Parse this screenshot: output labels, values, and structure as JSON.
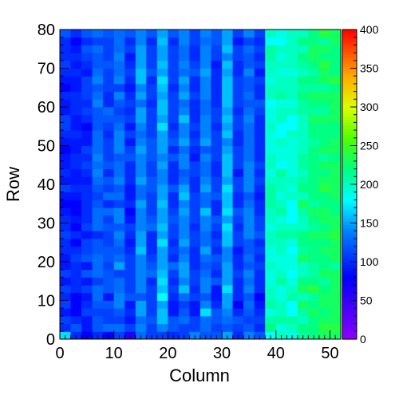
{
  "chart_data": {
    "type": "heatmap",
    "title": "",
    "xlabel": "Column",
    "ylabel": "Row",
    "xlim": [
      0,
      52
    ],
    "ylim": [
      0,
      80
    ],
    "x_ticks": [
      "0",
      "10",
      "20",
      "30",
      "40",
      "50"
    ],
    "y_ticks": [
      "0",
      "10",
      "20",
      "30",
      "40",
      "50",
      "60",
      "70",
      "80"
    ],
    "zlim": [
      0,
      400
    ],
    "z_ticks": [
      "0",
      "50",
      "100",
      "150",
      "200",
      "250",
      "300",
      "350",
      "400"
    ],
    "colormap": "rainbow (violet-blue-cyan-green-yellow-red)",
    "bin_size": 2,
    "n_cols": 26,
    "n_rows": 40,
    "values": [
      [
        170,
        100,
        80,
        100,
        80,
        110,
        60,
        130,
        110,
        110,
        100,
        110,
        140,
        120,
        120,
        150,
        100,
        140,
        120,
        180,
        200,
        190,
        210,
        220,
        230,
        230
      ],
      [
        100,
        120,
        90,
        120,
        130,
        130,
        110,
        140,
        110,
        140,
        120,
        110,
        110,
        130,
        110,
        120,
        110,
        120,
        100,
        220,
        190,
        200,
        220,
        220,
        240,
        240
      ],
      [
        110,
        100,
        90,
        120,
        110,
        110,
        90,
        130,
        120,
        160,
        120,
        130,
        110,
        130,
        120,
        130,
        120,
        110,
        110,
        210,
        210,
        210,
        200,
        220,
        230,
        230
      ],
      [
        90,
        80,
        110,
        110,
        110,
        120,
        100,
        150,
        110,
        160,
        90,
        120,
        90,
        170,
        120,
        140,
        100,
        120,
        100,
        190,
        200,
        180,
        210,
        230,
        220,
        230
      ],
      [
        110,
        80,
        100,
        120,
        120,
        140,
        90,
        150,
        110,
        150,
        90,
        110,
        90,
        140,
        100,
        150,
        80,
        130,
        90,
        210,
        200,
        180,
        230,
        220,
        230,
        230
      ],
      [
        100,
        80,
        90,
        130,
        90,
        140,
        120,
        120,
        110,
        180,
        100,
        130,
        110,
        120,
        90,
        150,
        100,
        120,
        80,
        200,
        190,
        210,
        200,
        210,
        230,
        230
      ],
      [
        110,
        100,
        110,
        130,
        120,
        130,
        110,
        140,
        110,
        160,
        110,
        160,
        100,
        140,
        90,
        170,
        100,
        140,
        100,
        200,
        190,
        200,
        230,
        240,
        220,
        230
      ],
      [
        90,
        100,
        90,
        110,
        120,
        130,
        110,
        140,
        100,
        170,
        100,
        140,
        110,
        140,
        120,
        150,
        100,
        130,
        100,
        190,
        210,
        190,
        220,
        220,
        210,
        230
      ],
      [
        110,
        100,
        120,
        130,
        120,
        110,
        110,
        140,
        130,
        160,
        110,
        150,
        110,
        130,
        100,
        150,
        110,
        140,
        100,
        190,
        200,
        180,
        200,
        210,
        230,
        230
      ],
      [
        90,
        100,
        90,
        130,
        110,
        150,
        110,
        140,
        120,
        150,
        130,
        150,
        100,
        120,
        110,
        150,
        100,
        120,
        110,
        200,
        190,
        190,
        200,
        210,
        220,
        210
      ],
      [
        90,
        110,
        120,
        130,
        120,
        130,
        110,
        140,
        110,
        150,
        100,
        140,
        100,
        130,
        120,
        140,
        100,
        130,
        100,
        190,
        190,
        190,
        230,
        220,
        220,
        230
      ],
      [
        100,
        100,
        110,
        120,
        120,
        120,
        100,
        160,
        100,
        150,
        110,
        130,
        100,
        150,
        100,
        140,
        90,
        120,
        110,
        190,
        200,
        180,
        210,
        220,
        230,
        230
      ],
      [
        100,
        80,
        110,
        120,
        110,
        130,
        90,
        150,
        100,
        170,
        100,
        150,
        110,
        130,
        110,
        160,
        110,
        120,
        100,
        200,
        200,
        190,
        220,
        220,
        220,
        230
      ],
      [
        110,
        100,
        90,
        100,
        110,
        140,
        100,
        150,
        100,
        150,
        110,
        140,
        110,
        130,
        100,
        160,
        110,
        140,
        120,
        200,
        210,
        210,
        220,
        230,
        230,
        240
      ],
      [
        100,
        80,
        110,
        130,
        120,
        120,
        110,
        140,
        130,
        160,
        110,
        140,
        100,
        140,
        110,
        170,
        100,
        140,
        110,
        190,
        200,
        200,
        200,
        210,
        220,
        230
      ],
      [
        100,
        90,
        100,
        130,
        110,
        140,
        90,
        140,
        120,
        150,
        120,
        140,
        110,
        140,
        120,
        150,
        110,
        140,
        110,
        200,
        190,
        180,
        200,
        220,
        230,
        230
      ],
      [
        90,
        80,
        100,
        130,
        130,
        140,
        80,
        140,
        110,
        150,
        110,
        150,
        110,
        160,
        100,
        170,
        120,
        140,
        100,
        200,
        210,
        180,
        210,
        230,
        230,
        220
      ],
      [
        80,
        80,
        100,
        120,
        100,
        110,
        100,
        150,
        110,
        160,
        100,
        140,
        110,
        130,
        100,
        160,
        100,
        130,
        100,
        210,
        200,
        180,
        230,
        210,
        220,
        220
      ],
      [
        90,
        90,
        100,
        110,
        130,
        130,
        90,
        130,
        110,
        150,
        100,
        160,
        110,
        130,
        120,
        160,
        100,
        120,
        90,
        210,
        190,
        200,
        200,
        220,
        220,
        230
      ],
      [
        110,
        100,
        100,
        120,
        110,
        120,
        90,
        130,
        120,
        150,
        120,
        150,
        100,
        150,
        110,
        170,
        110,
        140,
        100,
        210,
        200,
        190,
        220,
        220,
        240,
        230
      ],
      [
        90,
        90,
        90,
        130,
        120,
        140,
        100,
        150,
        120,
        140,
        100,
        130,
        100,
        140,
        110,
        150,
        110,
        140,
        110,
        200,
        200,
        200,
        210,
        220,
        230,
        230
      ],
      [
        100,
        90,
        100,
        140,
        100,
        130,
        100,
        140,
        110,
        140,
        100,
        120,
        110,
        130,
        100,
        160,
        90,
        140,
        100,
        190,
        210,
        190,
        200,
        220,
        220,
        230
      ],
      [
        90,
        100,
        110,
        130,
        120,
        130,
        100,
        140,
        110,
        150,
        100,
        140,
        110,
        130,
        100,
        160,
        110,
        140,
        110,
        200,
        180,
        190,
        210,
        220,
        230,
        230
      ],
      [
        90,
        100,
        100,
        140,
        110,
        120,
        120,
        140,
        120,
        140,
        120,
        140,
        90,
        140,
        110,
        160,
        110,
        130,
        100,
        200,
        190,
        190,
        210,
        220,
        210,
        220
      ],
      [
        80,
        90,
        110,
        130,
        110,
        140,
        110,
        150,
        120,
        150,
        100,
        130,
        100,
        120,
        110,
        150,
        110,
        130,
        100,
        190,
        190,
        190,
        200,
        220,
        230,
        230
      ],
      [
        90,
        90,
        90,
        130,
        110,
        140,
        90,
        140,
        120,
        150,
        120,
        150,
        110,
        150,
        110,
        140,
        100,
        130,
        100,
        190,
        200,
        190,
        200,
        210,
        220,
        230
      ],
      [
        100,
        100,
        90,
        130,
        100,
        140,
        110,
        130,
        110,
        150,
        110,
        140,
        100,
        140,
        110,
        160,
        100,
        130,
        100,
        190,
        180,
        200,
        200,
        220,
        220,
        220
      ],
      [
        110,
        90,
        80,
        120,
        110,
        130,
        90,
        140,
        110,
        170,
        100,
        140,
        110,
        140,
        100,
        150,
        110,
        130,
        100,
        200,
        180,
        180,
        200,
        220,
        220,
        220
      ],
      [
        110,
        90,
        100,
        120,
        120,
        120,
        110,
        150,
        110,
        150,
        110,
        160,
        100,
        140,
        110,
        160,
        110,
        140,
        100,
        190,
        200,
        180,
        200,
        230,
        230,
        230
      ],
      [
        90,
        100,
        110,
        120,
        130,
        110,
        100,
        150,
        110,
        160,
        110,
        140,
        100,
        130,
        110,
        150,
        100,
        130,
        110,
        190,
        200,
        200,
        210,
        210,
        210,
        230
      ],
      [
        90,
        100,
        100,
        140,
        100,
        120,
        110,
        130,
        100,
        160,
        110,
        130,
        100,
        130,
        100,
        160,
        110,
        120,
        120,
        180,
        190,
        190,
        210,
        220,
        220,
        230
      ],
      [
        100,
        100,
        110,
        130,
        100,
        140,
        100,
        150,
        110,
        150,
        110,
        150,
        110,
        140,
        100,
        160,
        110,
        130,
        100,
        200,
        210,
        200,
        220,
        230,
        230,
        230
      ],
      [
        80,
        90,
        110,
        120,
        110,
        110,
        90,
        140,
        110,
        160,
        100,
        140,
        100,
        140,
        100,
        160,
        110,
        120,
        100,
        200,
        200,
        200,
        210,
        210,
        210,
        220
      ],
      [
        90,
        90,
        110,
        140,
        110,
        140,
        100,
        160,
        100,
        170,
        110,
        150,
        100,
        140,
        100,
        160,
        110,
        120,
        110,
        190,
        200,
        200,
        220,
        220,
        230,
        240
      ],
      [
        100,
        100,
        90,
        130,
        110,
        130,
        110,
        160,
        120,
        150,
        110,
        130,
        120,
        150,
        100,
        150,
        100,
        140,
        90,
        200,
        190,
        190,
        200,
        210,
        230,
        220
      ],
      [
        110,
        90,
        100,
        120,
        120,
        130,
        100,
        150,
        110,
        160,
        110,
        140,
        110,
        140,
        90,
        160,
        100,
        120,
        110,
        200,
        200,
        200,
        210,
        220,
        240,
        220
      ],
      [
        100,
        100,
        110,
        120,
        110,
        140,
        90,
        150,
        110,
        150,
        110,
        130,
        100,
        140,
        110,
        140,
        110,
        120,
        100,
        210,
        190,
        200,
        220,
        230,
        220,
        220
      ],
      [
        100,
        90,
        120,
        130,
        110,
        130,
        110,
        150,
        110,
        150,
        110,
        130,
        100,
        140,
        110,
        160,
        110,
        130,
        110,
        210,
        200,
        200,
        200,
        230,
        230,
        220
      ],
      [
        100,
        80,
        100,
        110,
        110,
        130,
        100,
        140,
        100,
        160,
        100,
        140,
        110,
        130,
        120,
        150,
        90,
        110,
        100,
        180,
        180,
        200,
        220,
        220,
        210,
        230
      ],
      [
        120,
        100,
        120,
        130,
        120,
        130,
        120,
        140,
        120,
        150,
        120,
        140,
        110,
        140,
        120,
        150,
        110,
        140,
        110,
        200,
        190,
        200,
        200,
        220,
        240,
        230
      ]
    ]
  }
}
